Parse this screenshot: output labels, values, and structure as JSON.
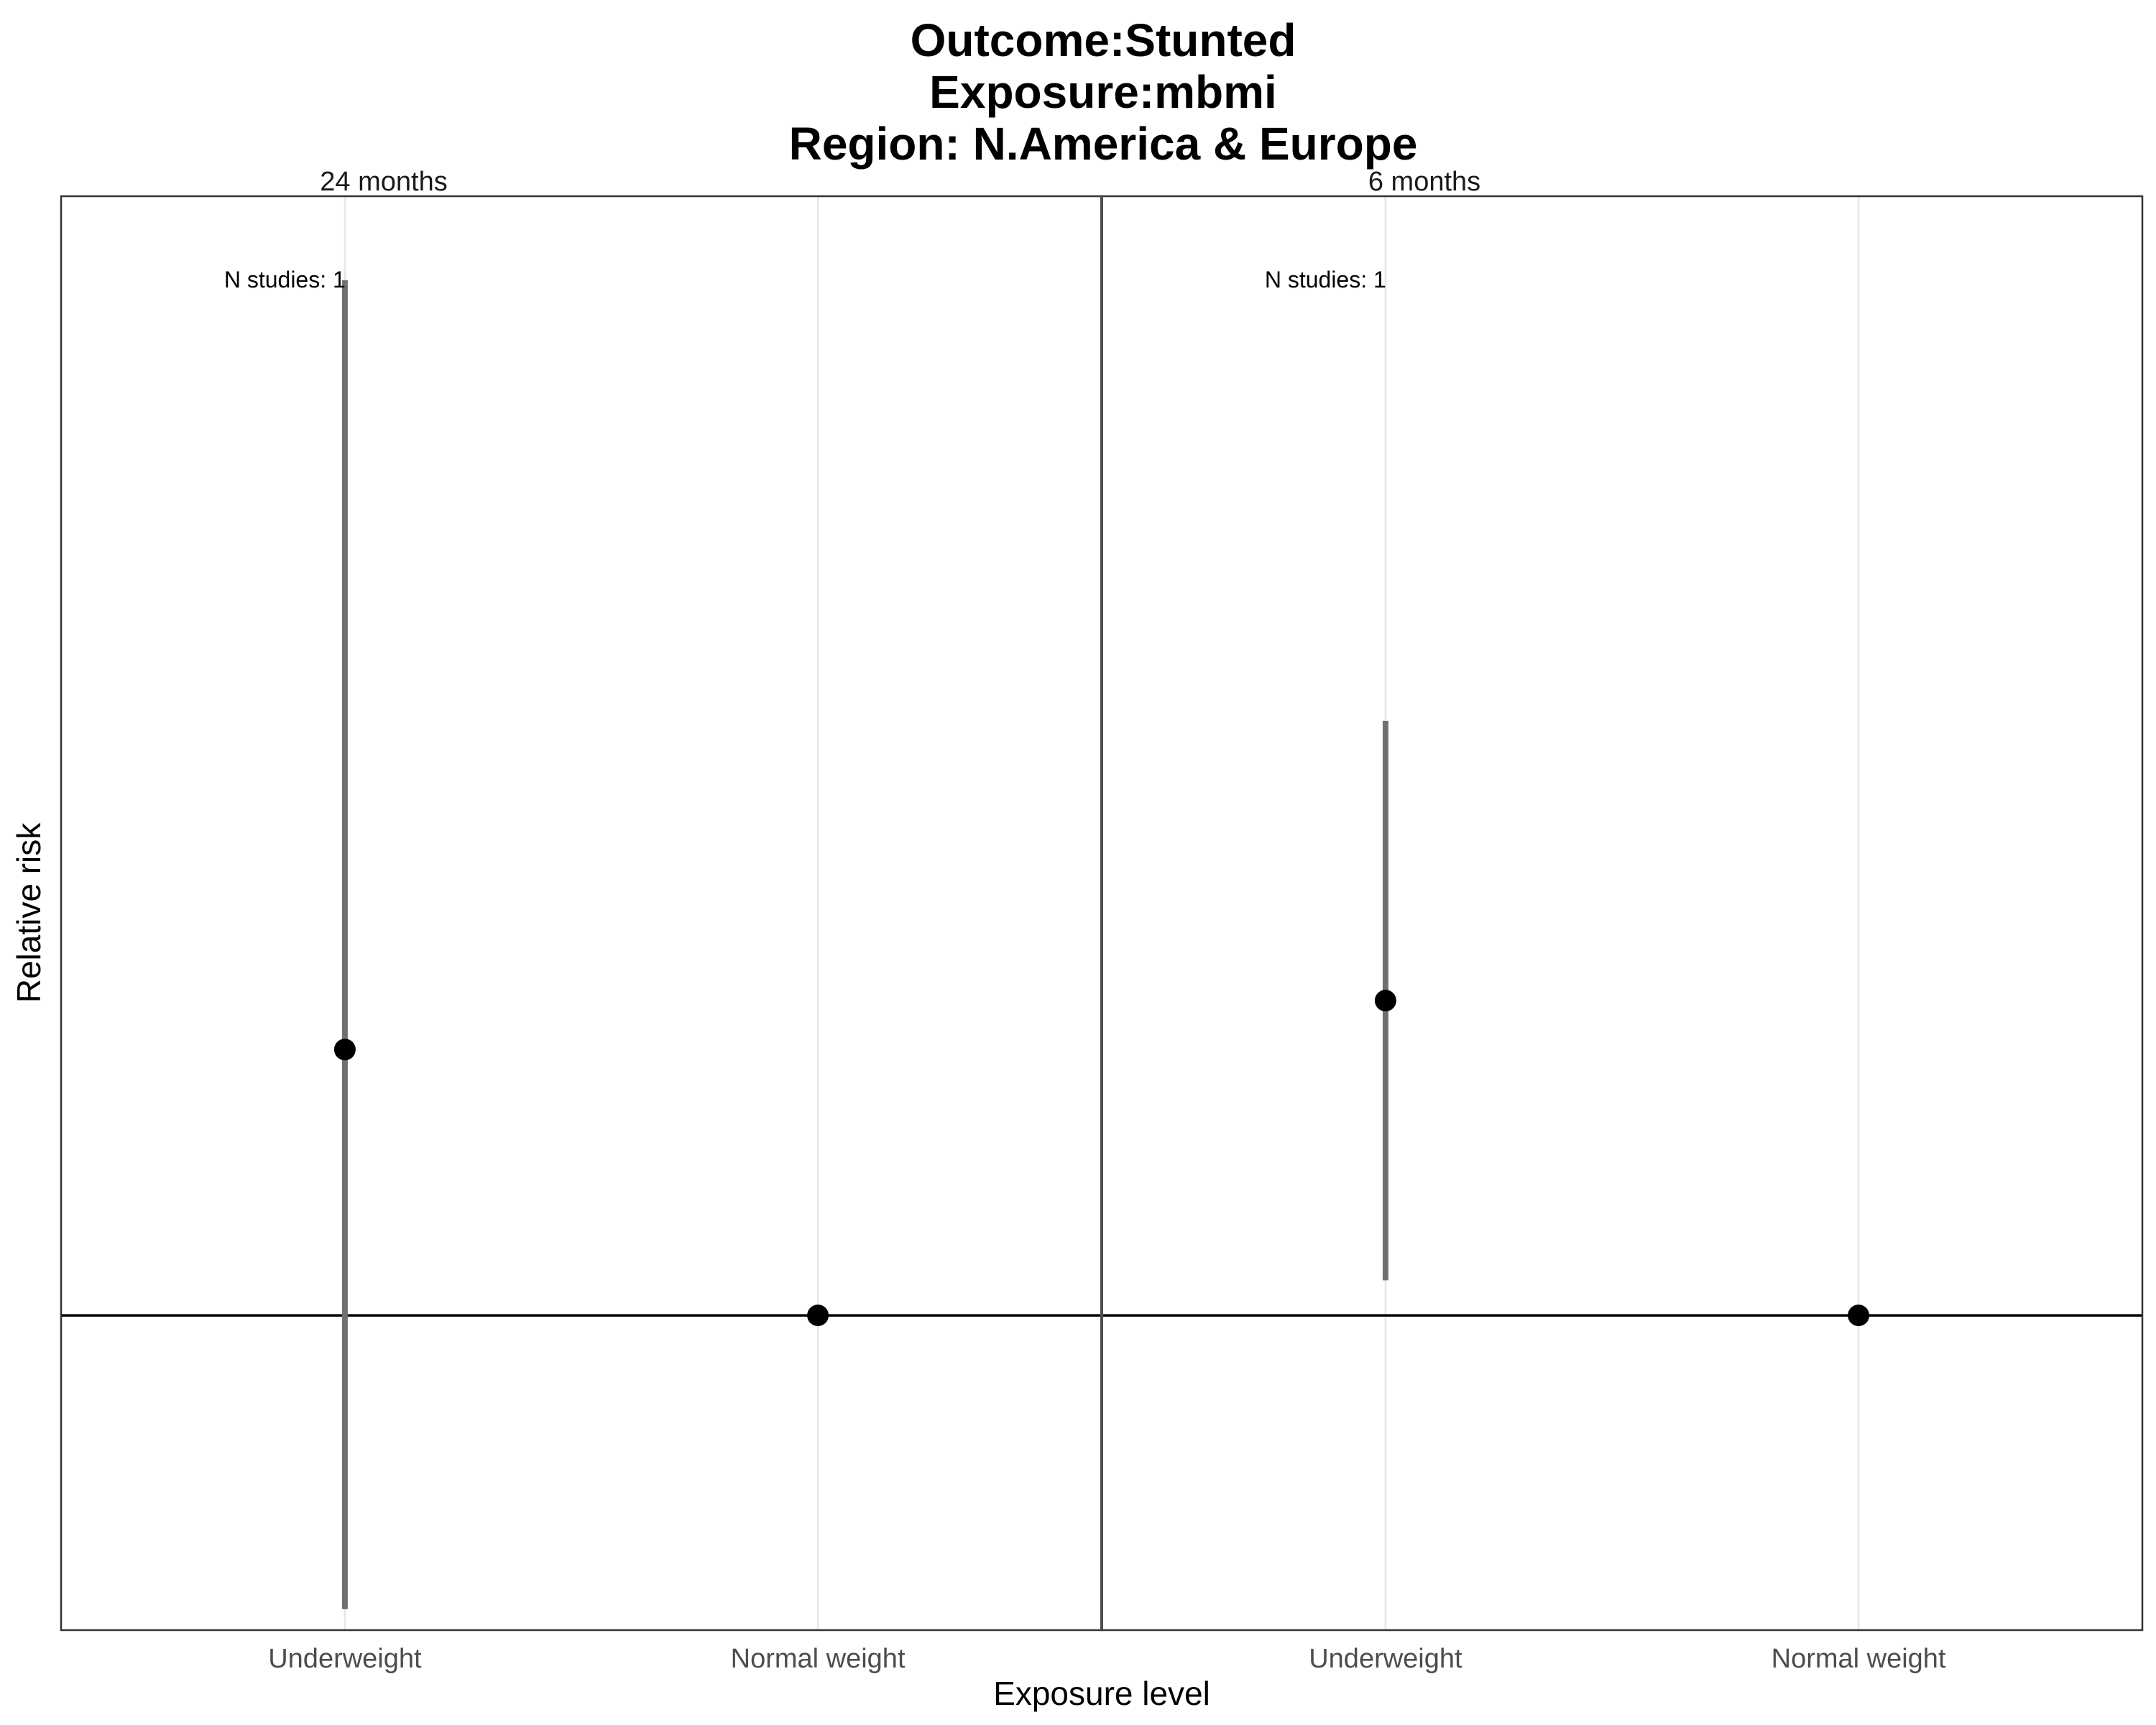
{
  "chart_data": {
    "type": "scatter",
    "title_lines": [
      "Outcome:Stunted",
      "Exposure:mbmi",
      "Region: N.America & Europe"
    ],
    "xlabel": "Exposure level",
    "ylabel": "Relative risk",
    "categories": [
      "Underweight",
      "Normal weight"
    ],
    "ylim": [
      0.55,
      2.6
    ],
    "reference_line": 1,
    "grid": true,
    "panels": [
      {
        "label": "24 months",
        "annotation": "N studies: 1",
        "points": [
          {
            "category": "Underweight",
            "estimate": 1.38,
            "ci_lower": 0.58,
            "ci_upper": 2.48
          },
          {
            "category": "Normal weight",
            "estimate": 1.0
          }
        ]
      },
      {
        "label": "6 months",
        "annotation": "N studies: 1",
        "points": [
          {
            "category": "Underweight",
            "estimate": 1.45,
            "ci_lower": 1.05,
            "ci_upper": 1.85
          },
          {
            "category": "Normal weight",
            "estimate": 1.0
          }
        ]
      }
    ],
    "colors": {
      "point": "#000000",
      "errorbar": "#707070",
      "refline": "#000000",
      "grid": "#e6e6e6",
      "border": "#333333"
    }
  }
}
